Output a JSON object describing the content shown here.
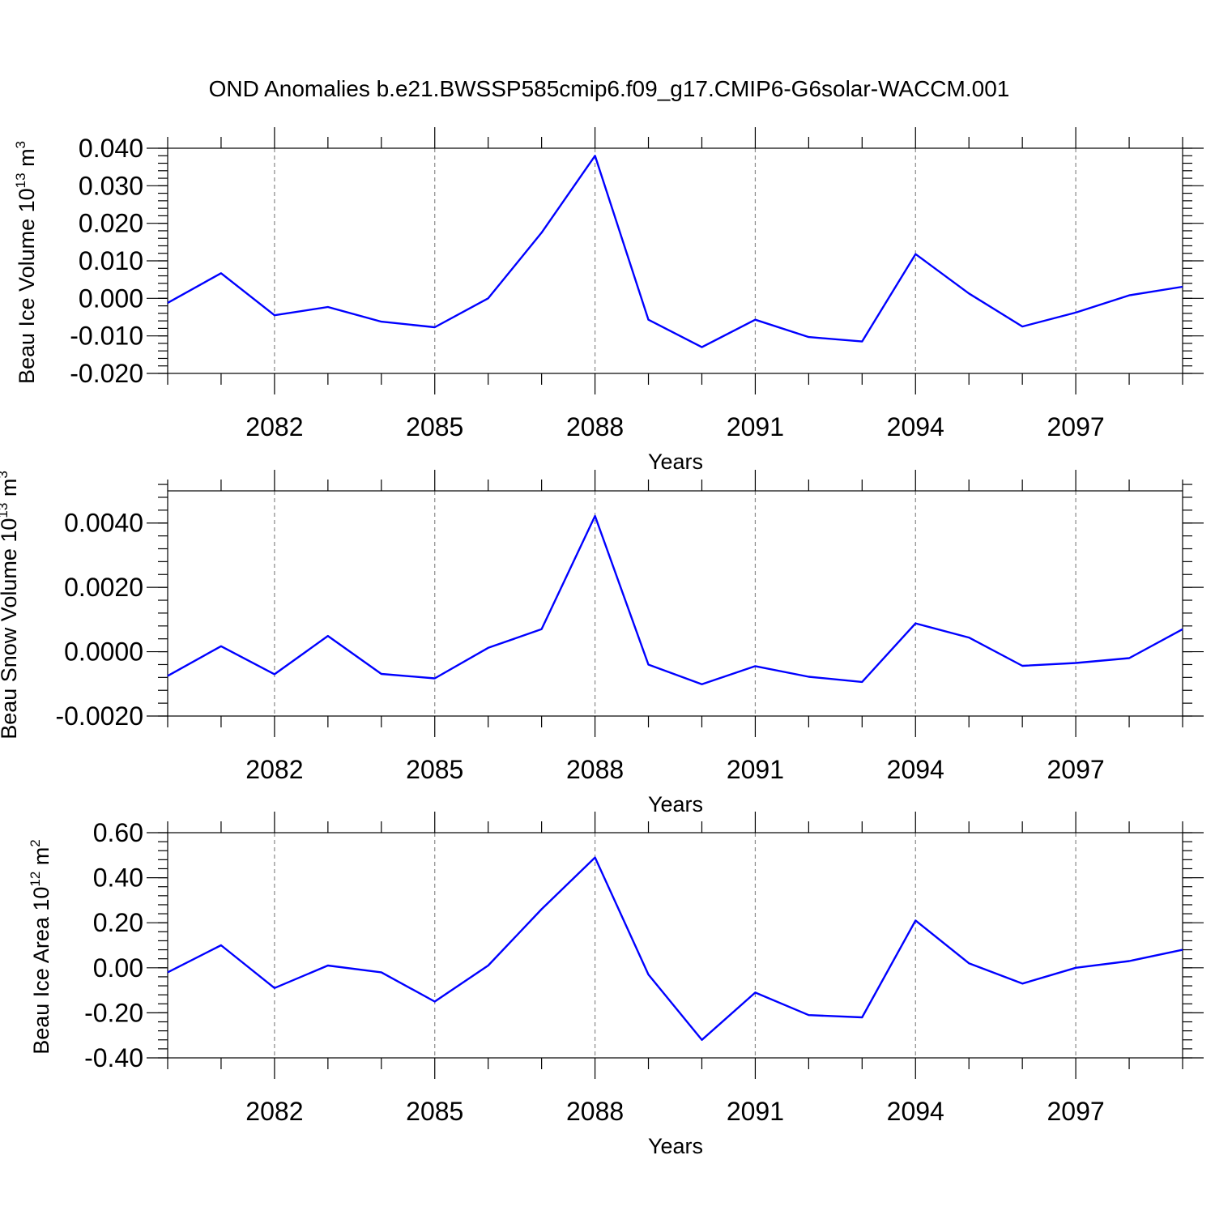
{
  "title": "OND Anomalies b.e21.BWSSP585cmip6.f09_g17.CMIP6-G6solar-WACCM.001",
  "colors": {
    "line": "#0000ff",
    "grid": "#8a8a8a",
    "axis": "#000000"
  },
  "chart_data": [
    {
      "type": "line",
      "ylabel": "Beau Ice Volume 10",
      "ylabel_sup": "13",
      "ylabel_unit": " m",
      "ylabel_unit_sup": "3",
      "xlabel": "Years",
      "xlim": [
        2080,
        2099
      ],
      "ylim": [
        -0.02,
        0.04
      ],
      "yticks": [
        -0.02,
        -0.01,
        0.0,
        0.01,
        0.02,
        0.03,
        0.04
      ],
      "ytick_labels": [
        "-0.020",
        "-0.010",
        "0.000",
        "0.010",
        "0.020",
        "0.030",
        "0.040"
      ],
      "yminor_step": 0.002,
      "xticks": [
        2082,
        2085,
        2088,
        2091,
        2094,
        2097
      ],
      "xtick_labels": [
        "2082",
        "2085",
        "2088",
        "2091",
        "2094",
        "2097"
      ],
      "grid": "x dashed",
      "x": [
        2080,
        2081,
        2082,
        2083,
        2084,
        2085,
        2086,
        2087,
        2088,
        2089,
        2090,
        2091,
        2092,
        2093,
        2094,
        2095,
        2096,
        2097,
        2098,
        2099
      ],
      "series": [
        {
          "values": [
            -0.0012,
            0.0067,
            -0.0045,
            -0.0023,
            -0.0062,
            -0.0077,
            0.0,
            0.0175,
            0.038,
            -0.0057,
            -0.013,
            -0.0057,
            -0.0103,
            -0.0115,
            0.0118,
            0.0013,
            -0.0075,
            -0.0038,
            0.0008,
            0.0031
          ]
        }
      ]
    },
    {
      "type": "line",
      "ylabel": "Beau Snow Volume 10",
      "ylabel_sup": "13",
      "ylabel_unit": " m",
      "ylabel_unit_sup": "3",
      "xlabel": "Years",
      "xlim": [
        2080,
        2099
      ],
      "ylim": [
        -0.002,
        0.005
      ],
      "yticks": [
        -0.002,
        0.0,
        0.002,
        0.004
      ],
      "ytick_labels": [
        "-0.0020",
        "0.0000",
        "0.0020",
        "0.0040"
      ],
      "yminor_step": 0.0004,
      "xticks": [
        2082,
        2085,
        2088,
        2091,
        2094,
        2097
      ],
      "xtick_labels": [
        "2082",
        "2085",
        "2088",
        "2091",
        "2094",
        "2097"
      ],
      "grid": "x dashed",
      "x": [
        2080,
        2081,
        2082,
        2083,
        2084,
        2085,
        2086,
        2087,
        2088,
        2089,
        2090,
        2091,
        2092,
        2093,
        2094,
        2095,
        2096,
        2097,
        2098,
        2099
      ],
      "series": [
        {
          "values": [
            -0.00075,
            0.00017,
            -0.0007,
            0.00049,
            -0.00069,
            -0.00083,
            0.00012,
            0.0007,
            0.00422,
            -0.0004,
            -0.00101,
            -0.00045,
            -0.00078,
            -0.00094,
            0.00088,
            0.00044,
            -0.00044,
            -0.00035,
            -0.0002,
            0.0007
          ]
        }
      ]
    },
    {
      "type": "line",
      "ylabel": "Beau Ice Area 10",
      "ylabel_sup": "12",
      "ylabel_unit": " m",
      "ylabel_unit_sup": "2",
      "xlabel": "Years",
      "xlim": [
        2080,
        2099
      ],
      "ylim": [
        -0.4,
        0.6
      ],
      "yticks": [
        -0.4,
        -0.2,
        0.0,
        0.2,
        0.4,
        0.6
      ],
      "ytick_labels": [
        "-0.40",
        "-0.20",
        "0.00",
        "0.20",
        "0.40",
        "0.60"
      ],
      "yminor_step": 0.04,
      "xticks": [
        2082,
        2085,
        2088,
        2091,
        2094,
        2097
      ],
      "xtick_labels": [
        "2082",
        "2085",
        "2088",
        "2091",
        "2094",
        "2097"
      ],
      "grid": "x dashed",
      "x": [
        2080,
        2081,
        2082,
        2083,
        2084,
        2085,
        2086,
        2087,
        2088,
        2089,
        2090,
        2091,
        2092,
        2093,
        2094,
        2095,
        2096,
        2097,
        2098,
        2099
      ],
      "series": [
        {
          "values": [
            -0.02,
            0.1,
            -0.09,
            0.01,
            -0.02,
            -0.15,
            0.01,
            0.26,
            0.49,
            -0.03,
            -0.32,
            -0.11,
            -0.21,
            -0.22,
            0.21,
            0.02,
            -0.07,
            0.0,
            0.03,
            0.08
          ]
        }
      ]
    }
  ]
}
